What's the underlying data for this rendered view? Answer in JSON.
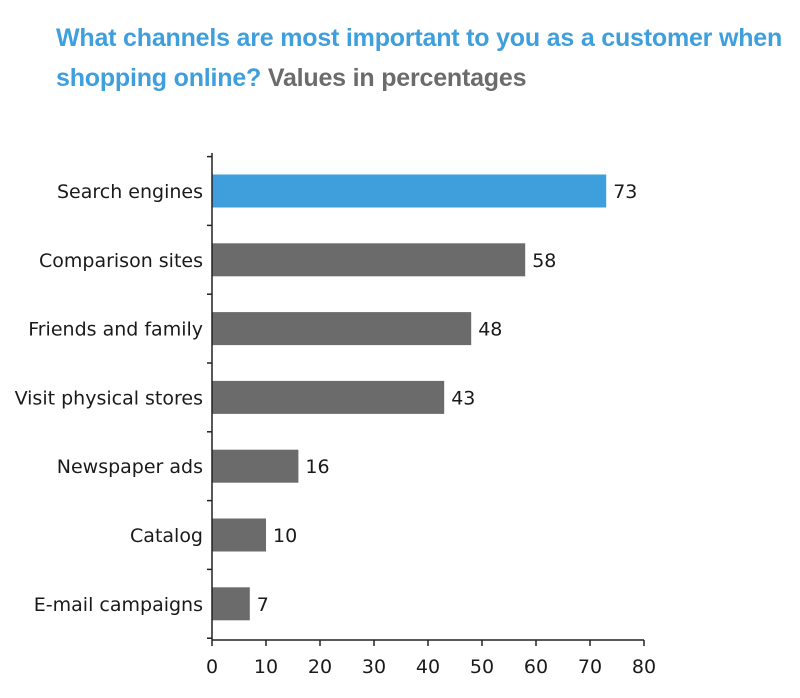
{
  "title": {
    "question": "What channels are most important to you as a customer when shopping online?",
    "subtitle": "Values in percentages"
  },
  "colors": {
    "highlight": "#3f9fdd",
    "bar": "#6b6b6b",
    "axis": "#222222"
  },
  "chart_data": {
    "type": "bar",
    "orientation": "horizontal",
    "categories": [
      "Search engines",
      "Comparison sites",
      "Friends and family",
      "Visit physical stores",
      "Newspaper ads",
      "Catalog",
      "E-mail campaigns"
    ],
    "values": [
      73,
      58,
      48,
      43,
      16,
      10,
      7
    ],
    "highlighted_category": "Search engines",
    "xlim": [
      0,
      80
    ],
    "xticks": [
      0,
      10,
      20,
      30,
      40,
      50,
      60,
      70,
      80
    ],
    "data_labels": true,
    "grid": false,
    "legend": "none"
  }
}
